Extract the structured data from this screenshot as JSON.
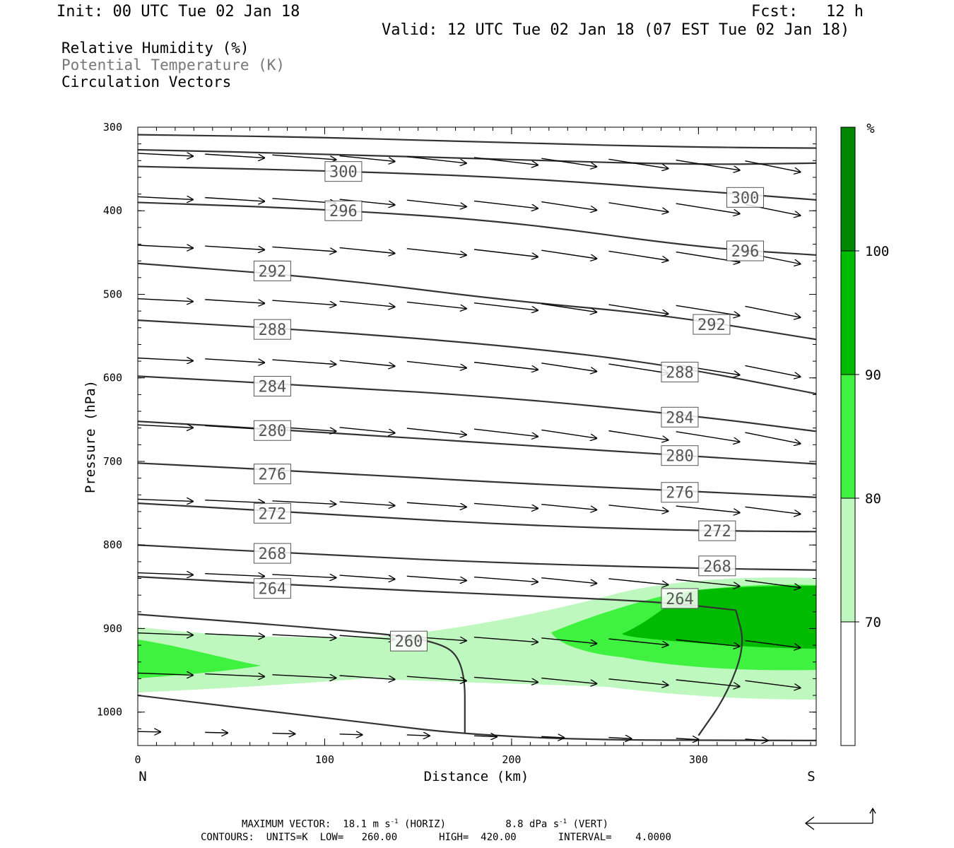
{
  "header": {
    "init": "Init: 00 UTC Tue 02 Jan 18",
    "fcst": "Fcst:   12 h",
    "valid": "Valid: 12 UTC Tue 02 Jan 18 (07 EST Tue 02 Jan 18)"
  },
  "fields": {
    "rh": "Relative Humidity (%)",
    "theta": "Potential Temperature (K)",
    "vectors": "Circulation Vectors"
  },
  "footer": {
    "max_vector_prefix": "MAXIMUM VECTOR:",
    "max_vector_horiz": "18.1 m s",
    "horiz_tag": "(HORIZ)",
    "max_vector_vert": "8.8 dPa s",
    "vert_tag": "(VERT)",
    "unit_exp": "-1",
    "contours": "CONTOURS:  UNITS=K  LOW=   260.00       HIGH=  420.00       INTERVAL=    4.0000"
  },
  "colors": {
    "rh_70": "#bff8bf",
    "rh_80": "#3ff23f",
    "rh_90": "#00bb00",
    "rh_100": "#008800",
    "contour": "#333333"
  },
  "chart_data": {
    "type": "contour",
    "xlabel": "Distance (km)",
    "ylabel": "Pressure (hPa)",
    "xlim": [
      0,
      363
    ],
    "ylim": [
      1040,
      300
    ],
    "xticks": [
      0,
      100,
      200,
      300
    ],
    "yticks": [
      300,
      400,
      500,
      600,
      700,
      800,
      900,
      1000
    ],
    "left_end": "N",
    "right_end": "S",
    "colorbar": {
      "unit": "%",
      "levels": [
        70,
        80,
        90,
        100
      ],
      "colors": [
        "#bff8bf",
        "#3ff23f",
        "#00bb00",
        "#008800"
      ]
    },
    "theta_contours": [
      {
        "value": 300,
        "points": [
          [
            0,
            309
          ],
          [
            100,
            312
          ],
          [
            200,
            319
          ],
          [
            300,
            324
          ],
          [
            363,
            325
          ]
        ]
      },
      {
        "value": 300,
        "points": [
          [
            0,
            327
          ],
          [
            100,
            332
          ],
          [
            200,
            339
          ],
          [
            300,
            345
          ],
          [
            363,
            343
          ]
        ]
      },
      {
        "value": 300,
        "points": [
          [
            0,
            347
          ],
          [
            100,
            352
          ],
          [
            200,
            360
          ],
          [
            300,
            376
          ],
          [
            363,
            387
          ]
        ],
        "label_at": [
          [
            110,
            353
          ],
          [
            325,
            384
          ]
        ]
      },
      {
        "value": 296,
        "points": [
          [
            0,
            390
          ],
          [
            100,
            398
          ],
          [
            200,
            413
          ],
          [
            300,
            444
          ],
          [
            363,
            453
          ]
        ],
        "label_at": [
          [
            110,
            400
          ],
          [
            325,
            448
          ]
        ]
      },
      {
        "value": 292,
        "points": [
          [
            0,
            463
          ],
          [
            100,
            480
          ],
          [
            200,
            508
          ],
          [
            280,
            524
          ],
          [
            363,
            554
          ]
        ],
        "label_at": [
          [
            72,
            472
          ],
          [
            307,
            536
          ]
        ]
      },
      {
        "value": 288,
        "points": [
          [
            0,
            531
          ],
          [
            100,
            544
          ],
          [
            200,
            562
          ],
          [
            280,
            583
          ],
          [
            363,
            619
          ]
        ],
        "label_at": [
          [
            72,
            542
          ],
          [
            290,
            593
          ]
        ]
      },
      {
        "value": 284,
        "points": [
          [
            0,
            598
          ],
          [
            100,
            610
          ],
          [
            200,
            624
          ],
          [
            300,
            646
          ],
          [
            363,
            664
          ]
        ],
        "label_at": [
          [
            72,
            610
          ],
          [
            290,
            647
          ]
        ]
      },
      {
        "value": 280,
        "points": [
          [
            0,
            652
          ],
          [
            100,
            665
          ],
          [
            200,
            680
          ],
          [
            300,
            694
          ],
          [
            363,
            703
          ]
        ],
        "label_at": [
          [
            72,
            663
          ],
          [
            290,
            693
          ]
        ]
      },
      {
        "value": 276,
        "points": [
          [
            0,
            702
          ],
          [
            100,
            713
          ],
          [
            200,
            726
          ],
          [
            300,
            736
          ],
          [
            363,
            743
          ]
        ],
        "label_at": [
          [
            72,
            715
          ],
          [
            290,
            737
          ]
        ]
      },
      {
        "value": 272,
        "points": [
          [
            0,
            750
          ],
          [
            100,
            763
          ],
          [
            200,
            776
          ],
          [
            300,
            783
          ],
          [
            363,
            784
          ]
        ],
        "label_at": [
          [
            72,
            762
          ],
          [
            310,
            783
          ]
        ]
      },
      {
        "value": 268,
        "points": [
          [
            0,
            800
          ],
          [
            100,
            812
          ],
          [
            200,
            822
          ],
          [
            300,
            828
          ],
          [
            363,
            830
          ]
        ],
        "label_at": [
          [
            72,
            810
          ],
          [
            310,
            825
          ]
        ]
      },
      {
        "value": 264,
        "points": [
          [
            0,
            838
          ],
          [
            100,
            850
          ],
          [
            200,
            860
          ],
          [
            280,
            868
          ],
          [
            320,
            878
          ]
        ],
        "label_at": [
          [
            72,
            852
          ],
          [
            290,
            864
          ]
        ]
      },
      {
        "value": 260,
        "points": [
          [
            0,
            883
          ],
          [
            100,
            900
          ],
          [
            160,
            913
          ],
          [
            175,
            940
          ],
          [
            175,
            1025
          ]
        ],
        "label_at": [
          [
            145,
            915
          ]
        ]
      },
      {
        "value": 260,
        "points": [
          [
            0,
            980
          ],
          [
            100,
            1007
          ],
          [
            200,
            1033
          ],
          [
            363,
            1034
          ]
        ]
      },
      {
        "value": 264,
        "points": [
          [
            320,
            878
          ],
          [
            325,
            920
          ],
          [
            315,
            980
          ],
          [
            300,
            1028
          ]
        ]
      }
    ]
  }
}
